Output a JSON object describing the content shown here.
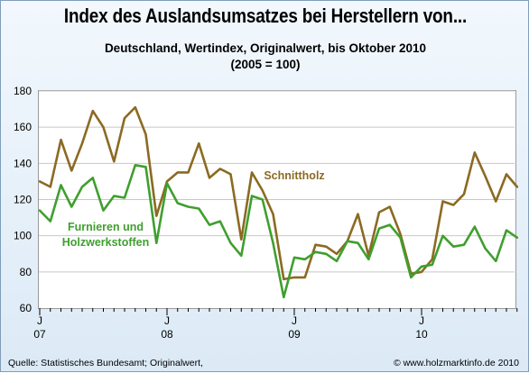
{
  "header": {
    "title": "Index des Auslandsumsatzes bei Herstellern von...",
    "subtitle_line1": "Deutschland, Wertindex, Originalwert, bis Oktober 2010",
    "subtitle_line2": "(2005 = 100)"
  },
  "footer": {
    "source": "Quelle: Statistisches Bundesamt; Originalwert,",
    "copyright": "© www.holzmarktinfo.de 2010"
  },
  "colors": {
    "schnittholz": "#8b6a22",
    "furniere": "#3f9f2e",
    "grid": "#c8c8c8"
  },
  "chart_data": {
    "type": "line",
    "ylim": [
      60,
      180
    ],
    "yticks": [
      60,
      80,
      100,
      120,
      140,
      160,
      180
    ],
    "x_period_labels": [
      {
        "month": "J",
        "year": "07",
        "index": 0
      },
      {
        "month": "J",
        "year": "08",
        "index": 12
      },
      {
        "month": "J",
        "year": "09",
        "index": 24
      },
      {
        "month": "J",
        "year": "10",
        "index": 36
      }
    ],
    "n_points": 46,
    "series": [
      {
        "name": "Schnittholz",
        "label_lines": [
          "Schnittholz"
        ],
        "color": "#8b6a22",
        "values": [
          130,
          127,
          153,
          136,
          151,
          169,
          160,
          141,
          165,
          171,
          156,
          111,
          130,
          135,
          135,
          151,
          132,
          137,
          134,
          98,
          135,
          125,
          112,
          76,
          77,
          77,
          95,
          94,
          90,
          97,
          112,
          89,
          113,
          116,
          101,
          79,
          80,
          87,
          119,
          117,
          123,
          146,
          133,
          119,
          134,
          127
        ]
      },
      {
        "name": "Furnieren und Holzwerkstoffen",
        "label_lines": [
          "Furnieren und",
          "Holzwerkstoffen"
        ],
        "color": "#3f9f2e",
        "values": [
          114,
          108,
          128,
          116,
          127,
          132,
          114,
          122,
          121,
          139,
          138,
          96,
          129,
          118,
          116,
          115,
          106,
          108,
          96,
          89,
          122,
          120,
          96,
          66,
          88,
          87,
          91,
          90,
          86,
          97,
          96,
          87,
          104,
          106,
          99,
          77,
          83,
          84,
          100,
          94,
          95,
          105,
          93,
          86,
          103,
          99
        ]
      }
    ]
  }
}
